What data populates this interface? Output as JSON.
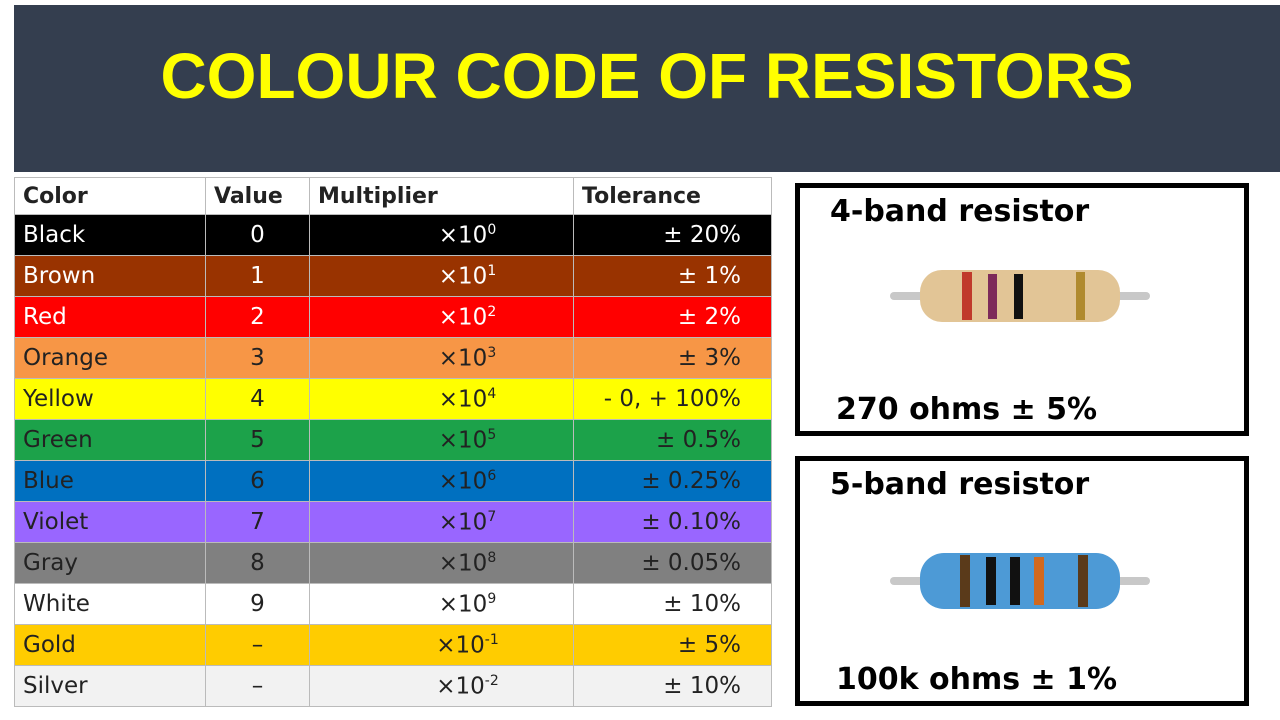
{
  "header": {
    "title": "COLOUR CODE OF RESISTORS"
  },
  "table": {
    "columns": [
      "Color",
      "Value",
      "Multiplier",
      "Tolerance"
    ],
    "rows": [
      {
        "color": "Black",
        "value": "0",
        "multiplier": {
          "base": "×10",
          "exp": "0"
        },
        "tolerance": "± 20%",
        "fill": "#000000",
        "ink": "#ffffff"
      },
      {
        "color": "Brown",
        "value": "1",
        "multiplier": {
          "base": "×10",
          "exp": "1"
        },
        "tolerance": "± 1%",
        "fill": "#993300",
        "ink": "#ffffff"
      },
      {
        "color": "Red",
        "value": "2",
        "multiplier": {
          "base": "×10",
          "exp": "2"
        },
        "tolerance": "± 2%",
        "fill": "#ff0000",
        "ink": "#ffffff"
      },
      {
        "color": "Orange",
        "value": "3",
        "multiplier": {
          "base": "×10",
          "exp": "3"
        },
        "tolerance": "± 3%",
        "fill": "#f79646",
        "ink": "#222222"
      },
      {
        "color": "Yellow",
        "value": "4",
        "multiplier": {
          "base": "×10",
          "exp": "4"
        },
        "tolerance": "- 0, + 100%",
        "fill": "#ffff00",
        "ink": "#222222"
      },
      {
        "color": "Green",
        "value": "5",
        "multiplier": {
          "base": "×10",
          "exp": "5"
        },
        "tolerance": "± 0.5%",
        "fill": "#1ca24a",
        "ink": "#222222"
      },
      {
        "color": "Blue",
        "value": "6",
        "multiplier": {
          "base": "×10",
          "exp": "6"
        },
        "tolerance": "± 0.25%",
        "fill": "#0070c0",
        "ink": "#222222"
      },
      {
        "color": "Violet",
        "value": "7",
        "multiplier": {
          "base": "×10",
          "exp": "7"
        },
        "tolerance": "± 0.10%",
        "fill": "#9966ff",
        "ink": "#222222"
      },
      {
        "color": "Gray",
        "value": "8",
        "multiplier": {
          "base": "×10",
          "exp": "8"
        },
        "tolerance": "± 0.05%",
        "fill": "#808080",
        "ink": "#222222"
      },
      {
        "color": "White",
        "value": "9",
        "multiplier": {
          "base": "×10",
          "exp": "9"
        },
        "tolerance": "± 10%",
        "fill": "#ffffff",
        "ink": "#222222"
      },
      {
        "color": "Gold",
        "value": "–",
        "multiplier": {
          "base": "×10",
          "exp": "-1"
        },
        "tolerance": "± 5%",
        "fill": "#ffcc00",
        "ink": "#222222"
      },
      {
        "color": "Silver",
        "value": "–",
        "multiplier": {
          "base": "×10",
          "exp": "-2"
        },
        "tolerance": "± 10%",
        "fill": "#f2f2f2",
        "ink": "#222222"
      }
    ]
  },
  "panels": [
    {
      "title": "4-band resistor",
      "caption": "270 ohms ± 5%"
    },
    {
      "title": "5-band resistor",
      "caption": "100k ohms ± 1%"
    }
  ]
}
